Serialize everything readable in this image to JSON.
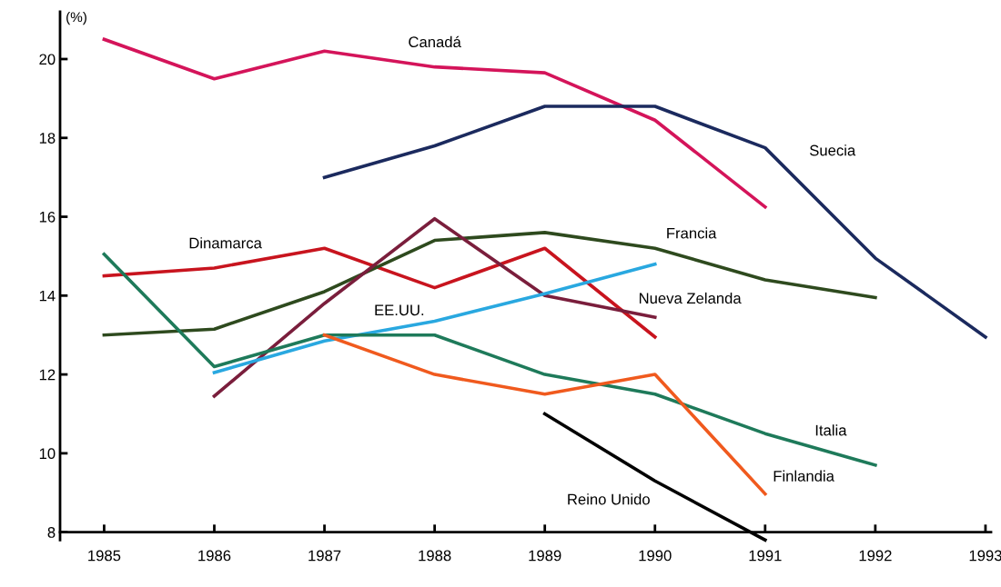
{
  "chart_data": {
    "type": "line",
    "ylabel": "(%)",
    "x": [
      1985,
      1986,
      1987,
      1988,
      1989,
      1990,
      1991,
      1992,
      1993
    ],
    "xlim": [
      1984.6,
      1993.05
    ],
    "xticks": [
      1985,
      1986,
      1987,
      1988,
      1989,
      1990,
      1991,
      1992,
      1993
    ],
    "ylim": [
      7.8,
      21.2
    ],
    "yticks": [
      8,
      10,
      12,
      14,
      16,
      18,
      20
    ],
    "grid": false,
    "legend": false,
    "marker": "none",
    "line_style": "solid",
    "series": [
      {
        "name": "Canadá",
        "color": "#d4145a",
        "values": [
          20.5,
          19.5,
          20.2,
          19.8,
          19.65,
          18.45,
          16.25,
          null,
          null
        ]
      },
      {
        "name": "Suecia",
        "color": "#1b2a5e",
        "values": [
          null,
          null,
          17.0,
          17.8,
          18.8,
          18.8,
          17.75,
          14.95,
          12.95
        ]
      },
      {
        "name": "Dinamarca",
        "color": "#c8141e",
        "values": [
          14.5,
          14.7,
          15.2,
          14.2,
          15.2,
          12.95,
          null,
          null,
          null
        ]
      },
      {
        "name": "Francia",
        "color": "#2e4a1e",
        "values": [
          13.0,
          13.15,
          14.1,
          15.4,
          15.6,
          15.2,
          14.4,
          13.95,
          null
        ]
      },
      {
        "name": "Nueva Zelanda",
        "color": "#7a1e3c",
        "values": [
          null,
          11.45,
          13.8,
          15.95,
          14.0,
          13.45,
          null,
          null,
          null
        ]
      },
      {
        "name": "EE.UU.",
        "color": "#29a8e0",
        "values": [
          null,
          12.05,
          12.85,
          13.35,
          14.05,
          14.8,
          null,
          null,
          null
        ]
      },
      {
        "name": "Italia",
        "color": "#1e7a5a",
        "values": [
          15.05,
          12.2,
          13.0,
          13.0,
          12.0,
          11.5,
          10.5,
          9.7,
          null
        ]
      },
      {
        "name": "Finlandia",
        "color": "#f05a1e",
        "values": [
          null,
          null,
          13.0,
          12.0,
          11.5,
          12.0,
          8.97,
          null,
          null
        ]
      },
      {
        "name": "Reino Unido",
        "color": "#000000",
        "values": [
          null,
          null,
          null,
          null,
          11.0,
          9.3,
          7.8,
          null,
          null
        ]
      }
    ]
  }
}
